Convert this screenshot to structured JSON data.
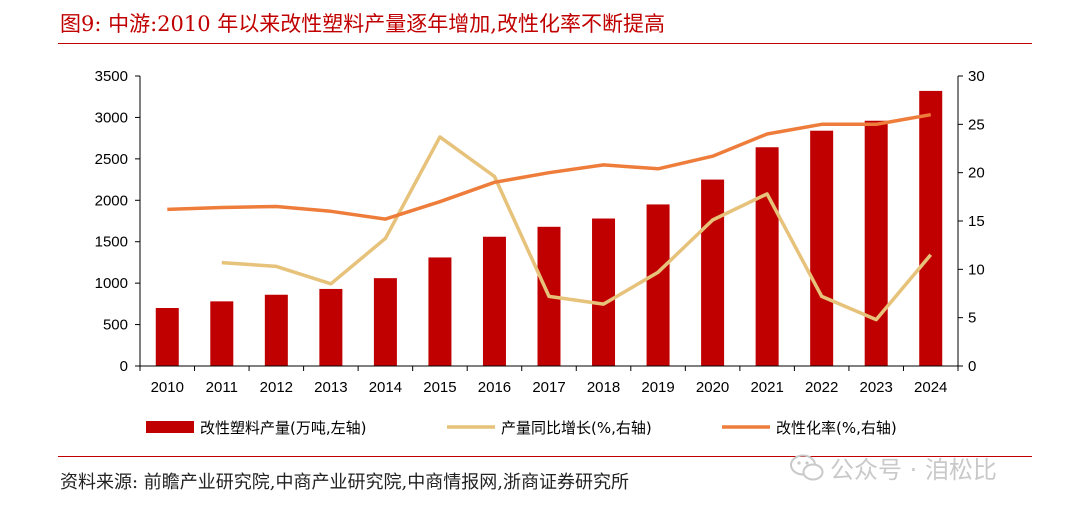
{
  "title": "图9:  中游:2010 年以来改性塑料产量逐年增加,改性化率不断提高",
  "source": "资料来源:  前瞻产业研究院,中商产业研究院,中商情报网,浙商证券研究所",
  "watermark": "公众号 · 洎松比",
  "colors": {
    "bar": "#c00000",
    "yoy": "#e6c27a",
    "rate": "#ee7d3b",
    "title": "#c00000"
  },
  "chart_data": {
    "type": "bar",
    "categories": [
      "2010",
      "2011",
      "2012",
      "2013",
      "2014",
      "2015",
      "2016",
      "2017",
      "2018",
      "2019",
      "2020",
      "2021",
      "2022",
      "2023",
      "2024"
    ],
    "series": [
      {
        "name": "改性塑料产量(万吨,左轴)",
        "type": "bar",
        "axis": "left",
        "values": [
          700,
          780,
          860,
          930,
          1060,
          1310,
          1560,
          1680,
          1780,
          1950,
          2250,
          2640,
          2840,
          2960,
          3320
        ]
      },
      {
        "name": "产量同比增长(%,右轴)",
        "type": "line",
        "axis": "right",
        "values": [
          null,
          10.7,
          10.3,
          8.5,
          13.2,
          23.7,
          19.6,
          7.2,
          6.4,
          9.7,
          15.1,
          17.8,
          7.2,
          4.8,
          11.5
        ]
      },
      {
        "name": "改性化率(%,右轴)",
        "type": "line",
        "axis": "right",
        "values": [
          16.2,
          16.4,
          16.5,
          16.0,
          15.2,
          17.0,
          19.0,
          20.0,
          20.8,
          20.4,
          21.7,
          24.0,
          25.0,
          25.0,
          26.0
        ]
      }
    ],
    "yleft": {
      "lim": [
        0,
        3500
      ],
      "ticks": [
        0,
        500,
        1000,
        1500,
        2000,
        2500,
        3000,
        3500
      ]
    },
    "yright": {
      "lim": [
        0,
        30
      ],
      "ticks": [
        0,
        5,
        10,
        15,
        20,
        25,
        30
      ]
    },
    "grid": false,
    "legend_position": "bottom"
  }
}
